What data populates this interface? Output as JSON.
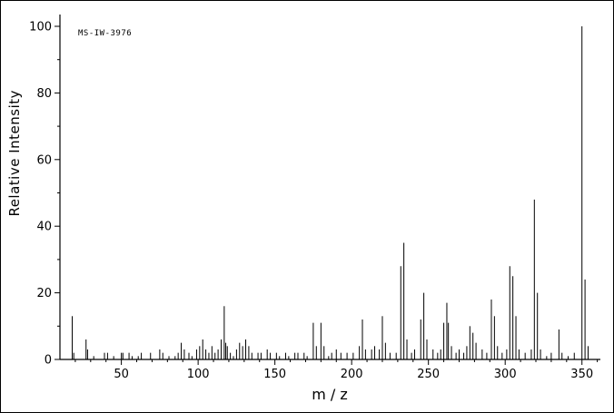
{
  "chart_data": {
    "type": "bar",
    "title": "",
    "annotation": "MS-IW-3976",
    "xlabel": "m / z",
    "ylabel": "Relative Intensity",
    "xlim": [
      10,
      362
    ],
    "ylim": [
      0,
      100
    ],
    "x_major_ticks": [
      50,
      100,
      150,
      200,
      250,
      300,
      350
    ],
    "x_minor_tick_step": 10,
    "y_major_ticks": [
      0,
      20,
      40,
      60,
      80,
      100
    ],
    "y_minor_tick_step": 10,
    "legend": "none",
    "grid": "off",
    "bar_color": "#000000",
    "peaks": [
      [
        18,
        13
      ],
      [
        19,
        2
      ],
      [
        27,
        6
      ],
      [
        28,
        3
      ],
      [
        32,
        1
      ],
      [
        39,
        2
      ],
      [
        41,
        2
      ],
      [
        45,
        1
      ],
      [
        50,
        2
      ],
      [
        51,
        2
      ],
      [
        55,
        2
      ],
      [
        57,
        1
      ],
      [
        61,
        1
      ],
      [
        63,
        2
      ],
      [
        69,
        2
      ],
      [
        75,
        3
      ],
      [
        77,
        2
      ],
      [
        81,
        1
      ],
      [
        85,
        1
      ],
      [
        87,
        2
      ],
      [
        89,
        5
      ],
      [
        91,
        3
      ],
      [
        94,
        2
      ],
      [
        96,
        1
      ],
      [
        99,
        3
      ],
      [
        101,
        4
      ],
      [
        103,
        6
      ],
      [
        105,
        3
      ],
      [
        107,
        2
      ],
      [
        109,
        4
      ],
      [
        111,
        2
      ],
      [
        113,
        3
      ],
      [
        115,
        6
      ],
      [
        117,
        16
      ],
      [
        118,
        5
      ],
      [
        119,
        4
      ],
      [
        121,
        2
      ],
      [
        123,
        1
      ],
      [
        125,
        3
      ],
      [
        127,
        5
      ],
      [
        129,
        4
      ],
      [
        131,
        6
      ],
      [
        133,
        4
      ],
      [
        135,
        2
      ],
      [
        139,
        2
      ],
      [
        141,
        2
      ],
      [
        145,
        3
      ],
      [
        147,
        2
      ],
      [
        151,
        2
      ],
      [
        153,
        1
      ],
      [
        157,
        2
      ],
      [
        159,
        1
      ],
      [
        163,
        2
      ],
      [
        165,
        2
      ],
      [
        169,
        2
      ],
      [
        171,
        1
      ],
      [
        175,
        11
      ],
      [
        177,
        4
      ],
      [
        180,
        11
      ],
      [
        182,
        4
      ],
      [
        185,
        1
      ],
      [
        187,
        2
      ],
      [
        190,
        3
      ],
      [
        193,
        2
      ],
      [
        197,
        2
      ],
      [
        201,
        2
      ],
      [
        205,
        4
      ],
      [
        207,
        12
      ],
      [
        209,
        3
      ],
      [
        213,
        3
      ],
      [
        215,
        4
      ],
      [
        218,
        3
      ],
      [
        220,
        13
      ],
      [
        222,
        5
      ],
      [
        225,
        2
      ],
      [
        229,
        2
      ],
      [
        232,
        28
      ],
      [
        234,
        35
      ],
      [
        236,
        6
      ],
      [
        239,
        2
      ],
      [
        241,
        3
      ],
      [
        245,
        12
      ],
      [
        247,
        20
      ],
      [
        249,
        6
      ],
      [
        253,
        3
      ],
      [
        256,
        2
      ],
      [
        258,
        3
      ],
      [
        260,
        11
      ],
      [
        262,
        17
      ],
      [
        263,
        11
      ],
      [
        265,
        4
      ],
      [
        268,
        2
      ],
      [
        270,
        3
      ],
      [
        273,
        2
      ],
      [
        275,
        4
      ],
      [
        277,
        10
      ],
      [
        279,
        8
      ],
      [
        281,
        5
      ],
      [
        285,
        3
      ],
      [
        288,
        2
      ],
      [
        291,
        18
      ],
      [
        293,
        13
      ],
      [
        295,
        4
      ],
      [
        298,
        2
      ],
      [
        301,
        3
      ],
      [
        303,
        28
      ],
      [
        305,
        25
      ],
      [
        307,
        13
      ],
      [
        309,
        3
      ],
      [
        313,
        2
      ],
      [
        317,
        3
      ],
      [
        319,
        48
      ],
      [
        321,
        20
      ],
      [
        323,
        3
      ],
      [
        327,
        1
      ],
      [
        330,
        2
      ],
      [
        335,
        9
      ],
      [
        337,
        2
      ],
      [
        341,
        1
      ],
      [
        345,
        2
      ],
      [
        350,
        100
      ],
      [
        352,
        24
      ],
      [
        354,
        4
      ]
    ]
  }
}
